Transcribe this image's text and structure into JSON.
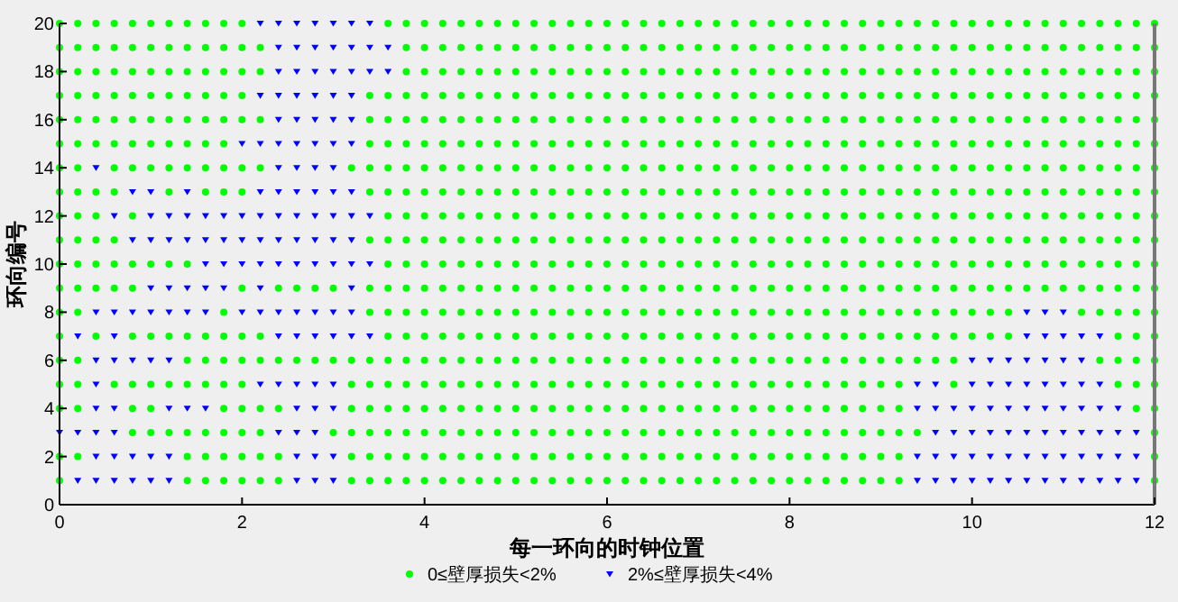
{
  "chart_data": {
    "type": "scatter",
    "xlabel": "每一环向的时钟位置",
    "ylabel": "环向编号",
    "xlim": [
      0,
      12
    ],
    "xticks": [
      0,
      2,
      4,
      6,
      8,
      10,
      12
    ],
    "ylim": [
      0,
      20
    ],
    "yticks": [
      0,
      2,
      4,
      6,
      8,
      10,
      12,
      14,
      16,
      18,
      20
    ],
    "grid": false,
    "legend": "bottom",
    "series": [
      {
        "name": "0≤壁厚损失<2%",
        "color": "#00ff00",
        "marker": "circle",
        "x": [
          0,
          1.4,
          1.6,
          1.8,
          2,
          2.2,
          2.4,
          3.2,
          3.4,
          3.6,
          3.8,
          4,
          4.2,
          4.4,
          4.6,
          4.8,
          5,
          5.2,
          5.4,
          5.6,
          5.8,
          6,
          6.2,
          6.4,
          6.6,
          6.8,
          7,
          7.2,
          7.4,
          7.6,
          7.8,
          8,
          8.2,
          8.4,
          8.6,
          8.8,
          9,
          9.2,
          12,
          0,
          0.2,
          1.4,
          1.6,
          1.8,
          2,
          2.2,
          2.4,
          3.2,
          3.4,
          3.6,
          3.8,
          4,
          4.2,
          4.4,
          4.6,
          4.8,
          5,
          5.2,
          5.4,
          5.6,
          5.8,
          6,
          6.2,
          6.4,
          6.6,
          6.8,
          7,
          7.2,
          7.4,
          7.6,
          7.8,
          8,
          8.2,
          8.4,
          8.6,
          8.8,
          9,
          9.2,
          12,
          0.8,
          1,
          1.2,
          1.4,
          1.6,
          1.8,
          2,
          2.2,
          3,
          3.2,
          3.4,
          3.6,
          3.8,
          4,
          4.2,
          4.4,
          4.6,
          4.8,
          5,
          5.2,
          5.4,
          5.6,
          5.8,
          6,
          6.2,
          6.4,
          6.6,
          6.8,
          7,
          7.2,
          7.4,
          7.6,
          7.8,
          8,
          8.2,
          8.4,
          8.6,
          8.8,
          9,
          9.2,
          9.4,
          12,
          0,
          0.2,
          0.8,
          1,
          1.8,
          2,
          2.2,
          2.4,
          3.2,
          3.4,
          3.6,
          3.8,
          4,
          4.2,
          4.4,
          4.6,
          4.8,
          5,
          5.2,
          5.4,
          5.6,
          5.8,
          6,
          6.2,
          6.4,
          6.6,
          6.8,
          7,
          7.2,
          7.4,
          7.6,
          7.8,
          8,
          8.2,
          8.4,
          8.6,
          8.8,
          9,
          9.2,
          11.8,
          12,
          0,
          0.2,
          0.6,
          0.8,
          1,
          1.2,
          1.4,
          1.6,
          1.8,
          2,
          3.2,
          3.4,
          3.6,
          3.8,
          4,
          4.2,
          4.4,
          4.6,
          4.8,
          5,
          5.2,
          5.4,
          5.6,
          5.8,
          6,
          6.2,
          6.4,
          6.6,
          6.8,
          7,
          7.2,
          7.4,
          7.6,
          7.8,
          8,
          8.2,
          8.4,
          8.6,
          8.8,
          9,
          9.2,
          9.8,
          11.6,
          11.8,
          12,
          0,
          0.2,
          1.4,
          1.6,
          1.8,
          2,
          2.2,
          2.4,
          2.6,
          2.8,
          3,
          3.2,
          3.4,
          3.6,
          3.8,
          4,
          4.2,
          4.4,
          4.6,
          4.8,
          5,
          5.2,
          5.4,
          5.6,
          5.8,
          6,
          6.2,
          6.4,
          6.6,
          6.8,
          7,
          7.2,
          7.4,
          7.6,
          7.8,
          8,
          8.2,
          8.4,
          8.6,
          8.8,
          9,
          9.2,
          9.4,
          9.6,
          9.8,
          11.4,
          11.6,
          11.8,
          12,
          0,
          0.4,
          0.8,
          1,
          1.2,
          1.4,
          1.6,
          1.8,
          2,
          2.2,
          3.6,
          3.8,
          4,
          4.2,
          4.4,
          4.6,
          4.8,
          5,
          5.2,
          5.4,
          5.6,
          5.8,
          6,
          6.2,
          6.4,
          6.6,
          6.8,
          7,
          7.2,
          7.4,
          7.6,
          7.8,
          8,
          8.2,
          8.4,
          8.6,
          8.8,
          9,
          9.2,
          9.4,
          9.6,
          9.8,
          10,
          10.2,
          10.4,
          11.6,
          11.8,
          12,
          0,
          0.2,
          1.8,
          3.4,
          3.6,
          3.8,
          4,
          4.2,
          4.4,
          4.6,
          4.8,
          5,
          5.2,
          5.4,
          5.6,
          5.8,
          6,
          6.2,
          6.4,
          6.6,
          6.8,
          7,
          7.2,
          7.4,
          7.6,
          7.8,
          8,
          8.2,
          8.4,
          8.6,
          8.8,
          9,
          9.2,
          9.4,
          9.6,
          9.8,
          10,
          10.2,
          10.4,
          11.2,
          11.4,
          11.6,
          11.8,
          12,
          0,
          0.2,
          0.4,
          0.6,
          0.8,
          2,
          2.4,
          2.6,
          2.8,
          3,
          3.4,
          3.6,
          3.8,
          4,
          4.2,
          4.4,
          4.6,
          4.8,
          5,
          5.2,
          5.4,
          5.6,
          5.8,
          6,
          6.2,
          6.4,
          6.6,
          6.8,
          7,
          7.2,
          7.4,
          7.6,
          7.8,
          8,
          8.2,
          8.4,
          8.6,
          8.8,
          9,
          9.2,
          9.4,
          9.6,
          9.8,
          10,
          10.2,
          10.4,
          10.6,
          10.8,
          11,
          11.2,
          11.4,
          11.6,
          11.8,
          12,
          0,
          0.2,
          0.4,
          0.6,
          0.8,
          1,
          1.2,
          1.4,
          3.6,
          3.8,
          4,
          4.2,
          4.4,
          4.6,
          4.8,
          5,
          5.2,
          5.4,
          5.6,
          5.8,
          6,
          6.2,
          6.4,
          6.6,
          6.8,
          7,
          7.2,
          7.4,
          7.6,
          7.8,
          8,
          8.2,
          8.4,
          8.6,
          8.8,
          9,
          9.2,
          9.4,
          9.6,
          9.8,
          10,
          10.2,
          10.4,
          10.6,
          10.8,
          11,
          11.2,
          11.4,
          11.6,
          11.8,
          12,
          0,
          0.2,
          0.4,
          0.6,
          3.4,
          3.6,
          3.8,
          4,
          4.2,
          4.4,
          4.6,
          4.8,
          5,
          5.2,
          5.4,
          5.6,
          5.8,
          6,
          6.2,
          6.4,
          6.6,
          6.8,
          7,
          7.2,
          7.4,
          7.6,
          7.8,
          8,
          8.2,
          8.4,
          8.6,
          8.8,
          9,
          9.2,
          9.4,
          9.6,
          9.8,
          10,
          10.2,
          10.4,
          10.6,
          10.8,
          11,
          11.2,
          11.4,
          11.6,
          11.8,
          12,
          0,
          0.2,
          0.4,
          0.8,
          3.6,
          3.8,
          4,
          4.2,
          4.4,
          4.6,
          4.8,
          5,
          5.2,
          5.4,
          5.6,
          5.8,
          6,
          6.2,
          6.4,
          6.6,
          6.8,
          7,
          7.2,
          7.4,
          7.6,
          7.8,
          8,
          8.2,
          8.4,
          8.6,
          8.8,
          9,
          9.2,
          9.4,
          9.6,
          9.8,
          10,
          10.2,
          10.4,
          10.6,
          10.8,
          11,
          11.2,
          11.4,
          11.6,
          11.8,
          12,
          0,
          0.2,
          0.4,
          0.6,
          1.2,
          1.6,
          1.8,
          2,
          3.4,
          3.6,
          3.8,
          4,
          4.2,
          4.4,
          4.6,
          4.8,
          5,
          5.2,
          5.4,
          5.6,
          5.8,
          6,
          6.2,
          6.4,
          6.6,
          6.8,
          7,
          7.2,
          7.4,
          7.6,
          7.8,
          8,
          8.2,
          8.4,
          8.6,
          8.8,
          9,
          9.2,
          9.4,
          9.6,
          9.8,
          10,
          10.2,
          10.4,
          10.6,
          10.8,
          11,
          11.2,
          11.4,
          11.6,
          11.8,
          12,
          0,
          0.2,
          0.6,
          0.8,
          1,
          1.2,
          1.4,
          1.6,
          1.8,
          2,
          2.2,
          3.2,
          3.4,
          3.6,
          3.8,
          4,
          4.2,
          4.4,
          4.6,
          4.8,
          5,
          5.2,
          5.4,
          5.6,
          5.8,
          6,
          6.2,
          6.4,
          6.6,
          6.8,
          7,
          7.2,
          7.4,
          7.6,
          7.8,
          8,
          8.2,
          8.4,
          8.6,
          8.8,
          9,
          9.2,
          9.4,
          9.6,
          9.8,
          10,
          10.2,
          10.4,
          10.6,
          10.8,
          11,
          11.2,
          11.4,
          11.6,
          11.8,
          12,
          0,
          0.2,
          0.4,
          0.6,
          0.8,
          1,
          1.2,
          1.4,
          1.6,
          1.8,
          3.4,
          3.6,
          3.8,
          4,
          4.2,
          4.4,
          4.6,
          4.8,
          5,
          5.2,
          5.4,
          5.6,
          5.8,
          6,
          6.2,
          6.4,
          6.6,
          6.8,
          7,
          7.2,
          7.4,
          7.6,
          7.8,
          8,
          8.2,
          8.4,
          8.6,
          8.8,
          9,
          9.2,
          9.4,
          9.6,
          9.8,
          10,
          10.2,
          10.4,
          10.6,
          10.8,
          11,
          11.2,
          11.4,
          11.6,
          11.8,
          12,
          0,
          0.2,
          0.4,
          0.6,
          0.8,
          1,
          1.2,
          1.4,
          1.6,
          1.8,
          2,
          2.2,
          3.4,
          3.6,
          3.8,
          4,
          4.2,
          4.4,
          4.6,
          4.8,
          5,
          5.2,
          5.4,
          5.6,
          5.8,
          6,
          6.2,
          6.4,
          6.6,
          6.8,
          7,
          7.2,
          7.4,
          7.6,
          7.8,
          8,
          8.2,
          8.4,
          8.6,
          8.8,
          9,
          9.2,
          9.4,
          9.6,
          9.8,
          10,
          10.2,
          10.4,
          10.6,
          10.8,
          11,
          11.2,
          11.4,
          11.6,
          11.8,
          12,
          0,
          0.2,
          0.4,
          0.6,
          0.8,
          1,
          1.2,
          1.4,
          1.6,
          1.8,
          2,
          3.4,
          3.6,
          3.8,
          4,
          4.2,
          4.4,
          4.6,
          4.8,
          5,
          5.2,
          5.4,
          5.6,
          5.8,
          6,
          6.2,
          6.4,
          6.6,
          6.8,
          7,
          7.2,
          7.4,
          7.6,
          7.8,
          8,
          8.2,
          8.4,
          8.6,
          8.8,
          9,
          9.2,
          9.4,
          9.6,
          9.8,
          10,
          10.2,
          10.4,
          10.6,
          10.8,
          11,
          11.2,
          11.4,
          11.6,
          11.8,
          12,
          0,
          0.2,
          0.4,
          0.6,
          0.8,
          1,
          1.2,
          1.4,
          1.6,
          1.8,
          2,
          2.2,
          3.8,
          4,
          4.2,
          4.4,
          4.6,
          4.8,
          5,
          5.2,
          5.4,
          5.6,
          5.8,
          6,
          6.2,
          6.4,
          6.6,
          6.8,
          7,
          7.2,
          7.4,
          7.6,
          7.8,
          8,
          8.2,
          8.4,
          8.6,
          8.8,
          9,
          9.2,
          9.4,
          9.6,
          9.8,
          10,
          10.2,
          10.4,
          10.6,
          10.8,
          11,
          11.2,
          11.4,
          11.6,
          11.8,
          12,
          0,
          0.2,
          0.4,
          0.6,
          0.8,
          1,
          1.2,
          1.4,
          1.6,
          1.8,
          2,
          2.2,
          3.8,
          4,
          4.2,
          4.4,
          4.6,
          4.8,
          5,
          5.2,
          5.4,
          5.6,
          5.8,
          6,
          6.2,
          6.4,
          6.6,
          6.8,
          7,
          7.2,
          7.4,
          7.6,
          7.8,
          8,
          8.2,
          8.4,
          8.6,
          8.8,
          9,
          9.2,
          9.4,
          9.6,
          9.8,
          10,
          10.2,
          10.4,
          10.6,
          10.8,
          11,
          11.2,
          11.4,
          11.6,
          11.8,
          12,
          0,
          0.2,
          0.4,
          0.6,
          0.8,
          1,
          1.2,
          1.4,
          1.6,
          1.8,
          2,
          3.6,
          3.8,
          4,
          4.2,
          4.4,
          4.6,
          4.8,
          5,
          5.2,
          5.4,
          5.6,
          5.8,
          6,
          6.2,
          6.4,
          6.6,
          6.8,
          7,
          7.2,
          7.4,
          7.6,
          7.8,
          8,
          8.2,
          8.4,
          8.6,
          8.8,
          9,
          9.2,
          9.4,
          9.6,
          9.8,
          10,
          10.2,
          10.4,
          10.6,
          10.8,
          11,
          11.2,
          11.4,
          11.6,
          11.8,
          12
        ],
        "values": [
          1,
          1,
          1,
          1,
          1,
          1,
          1,
          1,
          1,
          1,
          1,
          1,
          1,
          1,
          1,
          1,
          1,
          1,
          1,
          1,
          1,
          1,
          1,
          1,
          1,
          1,
          1,
          1,
          1,
          1,
          1,
          1,
          1,
          1,
          1,
          1,
          1,
          1,
          1,
          2,
          2,
          2,
          2,
          2,
          2,
          2,
          2,
          2,
          2,
          2,
          2,
          2,
          2,
          2,
          2,
          2,
          2,
          2,
          2,
          2,
          2,
          2,
          2,
          2,
          2,
          2,
          2,
          2,
          2,
          2,
          2,
          2,
          2,
          2,
          2,
          2,
          2,
          2,
          2,
          3,
          3,
          3,
          3,
          3,
          3,
          3,
          3,
          3,
          3,
          3,
          3,
          3,
          3,
          3,
          3,
          3,
          3,
          3,
          3,
          3,
          3,
          3,
          3,
          3,
          3,
          3,
          3,
          3,
          3,
          3,
          3,
          3,
          3,
          3,
          3,
          3,
          3,
          3,
          3,
          3,
          3,
          4,
          4,
          4,
          4,
          4,
          4,
          4,
          4,
          4,
          4,
          4,
          4,
          4,
          4,
          4,
          4,
          4,
          4,
          4,
          4,
          4,
          4,
          4,
          4,
          4,
          4,
          4,
          4,
          4,
          4,
          4,
          4,
          4,
          4,
          4,
          4,
          4,
          4,
          4,
          4,
          4,
          5,
          5,
          5,
          5,
          5,
          5,
          5,
          5,
          5,
          5,
          5,
          5,
          5,
          5,
          5,
          5,
          5,
          5,
          5,
          5,
          5,
          5,
          5,
          5,
          5,
          5,
          5,
          5,
          5,
          5,
          5,
          5,
          5,
          5,
          5,
          5,
          5,
          5,
          5,
          5,
          5,
          5,
          5,
          5,
          5,
          6,
          6,
          6,
          6,
          6,
          6,
          6,
          6,
          6,
          6,
          6,
          6,
          6,
          6,
          6,
          6,
          6,
          6,
          6,
          6,
          6,
          6,
          6,
          6,
          6,
          6,
          6,
          6,
          6,
          6,
          6,
          6,
          6,
          6,
          6,
          6,
          6,
          6,
          6,
          6,
          6,
          6,
          6,
          6,
          6,
          6,
          6,
          6,
          6,
          7,
          7,
          7,
          7,
          7,
          7,
          7,
          7,
          7,
          7,
          7,
          7,
          7,
          7,
          7,
          7,
          7,
          7,
          7,
          7,
          7,
          7,
          7,
          7,
          7,
          7,
          7,
          7,
          7,
          7,
          7,
          7,
          7,
          7,
          7,
          7,
          7,
          7,
          7,
          7,
          7,
          7,
          7,
          7,
          7,
          7,
          7,
          7,
          8,
          8,
          8,
          8,
          8,
          8,
          8,
          8,
          8,
          8,
          8,
          8,
          8,
          8,
          8,
          8,
          8,
          8,
          8,
          8,
          8,
          8,
          8,
          8,
          8,
          8,
          8,
          8,
          8,
          8,
          8,
          8,
          8,
          8,
          8,
          8,
          8,
          8,
          8,
          8,
          8,
          8,
          8,
          8,
          9,
          9,
          9,
          9,
          9,
          9,
          9,
          9,
          9,
          9,
          9,
          9,
          9,
          9,
          9,
          9,
          9,
          9,
          9,
          9,
          9,
          9,
          9,
          9,
          9,
          9,
          9,
          9,
          9,
          9,
          9,
          9,
          9,
          9,
          9,
          9,
          9,
          9,
          9,
          9,
          9,
          9,
          9,
          9,
          9,
          9,
          9,
          9,
          9,
          9,
          9,
          9,
          9,
          9,
          10,
          10,
          10,
          10,
          10,
          10,
          10,
          10,
          10,
          10,
          10,
          10,
          10,
          10,
          10,
          10,
          10,
          10,
          10,
          10,
          10,
          10,
          10,
          10,
          10,
          10,
          10,
          10,
          10,
          10,
          10,
          10,
          10,
          10,
          10,
          10,
          10,
          10,
          10,
          10,
          10,
          10,
          10,
          10,
          10,
          10,
          10,
          10,
          10,
          10,
          10,
          11,
          11,
          11,
          11,
          11,
          11,
          11,
          11,
          11,
          11,
          11,
          11,
          11,
          11,
          11,
          11,
          11,
          11,
          11,
          11,
          11,
          11,
          11,
          11,
          11,
          11,
          11,
          11,
          11,
          11,
          11,
          11,
          11,
          11,
          11,
          11,
          11,
          11,
          11,
          11,
          11,
          11,
          11,
          11,
          11,
          11,
          11,
          11,
          12,
          12,
          12,
          12,
          12,
          12,
          12,
          12,
          12,
          12,
          12,
          12,
          12,
          12,
          12,
          12,
          12,
          12,
          12,
          12,
          12,
          12,
          12,
          12,
          12,
          12,
          12,
          12,
          12,
          12,
          12,
          12,
          12,
          12,
          12,
          12,
          12,
          12,
          12,
          12,
          12,
          12,
          12,
          12,
          12,
          12,
          12,
          13,
          13,
          13,
          13,
          13,
          13,
          13,
          13,
          13,
          13,
          13,
          13,
          13,
          13,
          13,
          13,
          13,
          13,
          13,
          13,
          13,
          13,
          13,
          13,
          13,
          13,
          13,
          13,
          13,
          13,
          13,
          13,
          13,
          13,
          13,
          13,
          13,
          13,
          13,
          13,
          13,
          13,
          13,
          13,
          13,
          13,
          13,
          13,
          13,
          13,
          13,
          13,
          14,
          14,
          14,
          14,
          14,
          14,
          14,
          14,
          14,
          14,
          14,
          14,
          14,
          14,
          14,
          14,
          14,
          14,
          14,
          14,
          14,
          14,
          14,
          14,
          14,
          14,
          14,
          14,
          14,
          14,
          14,
          14,
          14,
          14,
          14,
          14,
          14,
          14,
          14,
          14,
          14,
          14,
          14,
          14,
          14,
          14,
          14,
          14,
          14,
          14,
          14,
          14,
          14,
          14,
          14,
          14,
          15,
          15,
          15,
          15,
          15,
          15,
          15,
          15,
          15,
          15,
          15,
          15,
          15,
          15,
          15,
          15,
          15,
          15,
          15,
          15,
          15,
          15,
          15,
          15,
          15,
          15,
          15,
          15,
          15,
          15,
          15,
          15,
          15,
          15,
          15,
          15,
          15,
          15,
          15,
          15,
          15,
          15,
          15,
          15,
          15,
          15,
          15,
          15,
          15,
          15,
          15,
          15,
          15,
          15,
          16,
          16,
          16,
          16,
          16,
          16,
          16,
          16,
          16,
          16,
          16,
          16,
          16,
          16,
          16,
          16,
          16,
          16,
          16,
          16,
          16,
          16,
          16,
          16,
          16,
          16,
          16,
          16,
          16,
          16,
          16,
          16,
          16,
          16,
          16,
          16,
          16,
          16,
          16,
          16,
          16,
          16,
          16,
          16,
          16,
          16,
          16,
          16,
          16,
          16,
          16,
          16,
          16,
          16,
          16,
          16,
          17,
          17,
          17,
          17,
          17,
          17,
          17,
          17,
          17,
          17,
          17,
          17,
          17,
          17,
          17,
          17,
          17,
          17,
          17,
          17,
          17,
          17,
          17,
          17,
          17,
          17,
          17,
          17,
          17,
          17,
          17,
          17,
          17,
          17,
          17,
          17,
          17,
          17,
          17,
          17,
          17,
          17,
          17,
          17,
          17,
          17,
          17,
          17,
          17,
          17,
          17,
          17,
          17,
          17,
          17,
          18,
          18,
          18,
          18,
          18,
          18,
          18,
          18,
          18,
          18,
          18,
          18,
          18,
          18,
          18,
          18,
          18,
          18,
          18,
          18,
          18,
          18,
          18,
          18,
          18,
          18,
          18,
          18,
          18,
          18,
          18,
          18,
          18,
          18,
          18,
          18,
          18,
          18,
          18,
          18,
          18,
          18,
          18,
          18,
          18,
          18,
          18,
          18,
          18,
          18,
          18,
          18,
          18,
          18,
          19,
          19,
          19,
          19,
          19,
          19,
          19,
          19,
          19,
          19,
          19,
          19,
          19,
          19,
          19,
          19,
          19,
          19,
          19,
          19,
          19,
          19,
          19,
          19,
          19,
          19,
          19,
          19,
          19,
          19,
          19,
          19,
          19,
          19,
          19,
          19,
          19,
          19,
          19,
          19,
          19,
          19,
          19,
          19,
          19,
          19,
          19,
          19,
          19,
          19,
          19,
          19,
          19,
          19,
          20,
          20,
          20,
          20,
          20,
          20,
          20,
          20,
          20,
          20,
          20,
          20,
          20,
          20,
          20,
          20,
          20,
          20,
          20,
          20,
          20,
          20,
          20,
          20,
          20,
          20,
          20,
          20,
          20,
          20,
          20,
          20,
          20,
          20,
          20,
          20,
          20,
          20,
          20,
          20,
          20,
          20,
          20,
          20,
          20,
          20,
          20,
          20,
          20,
          20,
          20,
          20,
          20,
          20
        ]
      },
      {
        "name": "2%≤壁厚损失<4%",
        "color": "#0000ff",
        "marker": "triangle",
        "x": [
          0.2,
          0.4,
          0.6,
          0.8,
          1,
          1.2,
          2.6,
          2.8,
          3,
          9.4,
          9.6,
          9.8,
          10,
          10.2,
          10.4,
          10.6,
          10.8,
          11,
          11.2,
          11.4,
          11.6,
          11.8,
          0.4,
          0.6,
          0.8,
          1,
          1.2,
          2.6,
          2.8,
          3,
          9.4,
          9.6,
          9.8,
          10,
          10.2,
          10.4,
          10.6,
          10.8,
          11,
          11.2,
          11.4,
          11.6,
          11.8,
          0,
          0.2,
          0.4,
          0.6,
          2.4,
          2.6,
          2.8,
          9.6,
          9.8,
          10,
          10.2,
          10.4,
          10.6,
          10.8,
          11,
          11.2,
          11.4,
          11.6,
          11.8,
          0.4,
          0.6,
          1.2,
          1.4,
          1.6,
          2.6,
          2.8,
          3,
          9.4,
          9.6,
          9.8,
          10,
          10.2,
          10.4,
          10.6,
          10.8,
          11,
          11.2,
          11.4,
          11.6,
          0.4,
          2.2,
          2.4,
          2.6,
          2.8,
          3,
          9.4,
          9.6,
          10,
          10.2,
          10.4,
          10.6,
          10.8,
          11,
          11.2,
          11.4,
          0.4,
          0.6,
          0.8,
          1,
          1.2,
          10,
          10.2,
          10.4,
          10.6,
          10.8,
          11,
          11.2,
          0.2,
          0.6,
          2.4,
          2.6,
          2.8,
          3,
          3.2,
          3.4,
          10.6,
          10.8,
          11,
          11.2,
          11.4,
          0.4,
          0.6,
          0.8,
          1,
          1.2,
          1.4,
          1.6,
          2,
          2.2,
          2.4,
          2.6,
          2.8,
          3,
          3.2,
          10.6,
          10.8,
          11,
          1,
          1.2,
          1.4,
          1.6,
          1.8,
          2.2,
          3.2,
          1.6,
          1.8,
          2,
          2.2,
          2.4,
          2.6,
          2.8,
          3,
          3.2,
          3.4,
          0.8,
          1,
          1.2,
          1.4,
          1.6,
          1.8,
          2,
          2.2,
          2.4,
          2.6,
          2.8,
          3,
          3.2,
          0.6,
          1,
          1.2,
          1.4,
          1.6,
          1.8,
          2,
          2.2,
          2.4,
          2.6,
          2.8,
          3,
          3.2,
          3.4,
          0.8,
          1,
          1.4,
          2.2,
          2.4,
          2.6,
          2.8,
          3,
          3.2,
          0.4,
          2.4,
          2.6,
          2.8,
          3,
          2,
          2.2,
          2.4,
          2.6,
          2.8,
          3,
          3.2,
          2.4,
          2.6,
          2.8,
          3,
          3.2,
          2.2,
          2.4,
          2.6,
          2.8,
          3,
          3.2,
          2.4,
          2.6,
          2.8,
          3,
          3.2,
          3.4,
          3.6,
          2.4,
          2.6,
          2.8,
          3,
          3.2,
          3.4,
          3.6,
          2.2,
          2.4,
          2.6,
          2.8,
          3,
          3.2,
          3.4
        ],
        "values": [
          1,
          1,
          1,
          1,
          1,
          1,
          1,
          1,
          1,
          1,
          1,
          1,
          1,
          1,
          1,
          1,
          1,
          1,
          1,
          1,
          1,
          1,
          2,
          2,
          2,
          2,
          2,
          2,
          2,
          2,
          2,
          2,
          2,
          2,
          2,
          2,
          2,
          2,
          2,
          2,
          2,
          2,
          2,
          3,
          3,
          3,
          3,
          3,
          3,
          3,
          3,
          3,
          3,
          3,
          3,
          3,
          3,
          3,
          3,
          3,
          3,
          3,
          4,
          4,
          4,
          4,
          4,
          4,
          4,
          4,
          4,
          4,
          4,
          4,
          4,
          4,
          4,
          4,
          4,
          4,
          4,
          4,
          5,
          5,
          5,
          5,
          5,
          5,
          5,
          5,
          5,
          5,
          5,
          5,
          5,
          5,
          5,
          5,
          6,
          6,
          6,
          6,
          6,
          6,
          6,
          6,
          6,
          6,
          6,
          6,
          7,
          7,
          7,
          7,
          7,
          7,
          7,
          7,
          7,
          7,
          7,
          7,
          7,
          8,
          8,
          8,
          8,
          8,
          8,
          8,
          8,
          8,
          8,
          8,
          8,
          8,
          8,
          8,
          8,
          8,
          9,
          9,
          9,
          9,
          9,
          9,
          9,
          10,
          10,
          10,
          10,
          10,
          10,
          10,
          10,
          10,
          10,
          11,
          11,
          11,
          11,
          11,
          11,
          11,
          11,
          11,
          11,
          11,
          11,
          11,
          12,
          12,
          12,
          12,
          12,
          12,
          12,
          12,
          12,
          12,
          12,
          12,
          12,
          12,
          13,
          13,
          13,
          13,
          13,
          13,
          13,
          13,
          13,
          14,
          14,
          14,
          14,
          14,
          15,
          15,
          15,
          15,
          15,
          15,
          15,
          16,
          16,
          16,
          16,
          16,
          17,
          17,
          17,
          17,
          17,
          17,
          18,
          18,
          18,
          18,
          18,
          18,
          18,
          19,
          19,
          19,
          19,
          19,
          19,
          19,
          20,
          20,
          20,
          20,
          20,
          20,
          20
        ]
      }
    ]
  }
}
